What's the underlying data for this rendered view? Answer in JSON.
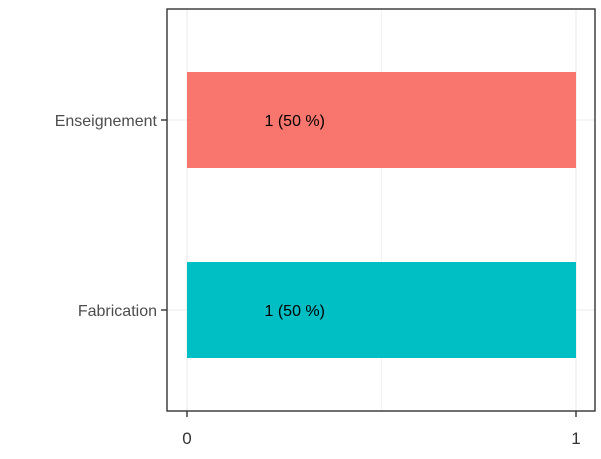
{
  "chart_data": {
    "type": "bar",
    "orientation": "horizontal",
    "categories": [
      "Enseignement",
      "Fabrication"
    ],
    "values": [
      1,
      1
    ],
    "data_labels": [
      "1 (50 %)",
      "1 (50 %)"
    ],
    "colors": [
      "#F8766D",
      "#00BFC4"
    ],
    "title": "",
    "xlabel": "",
    "ylabel": "",
    "xlim": [
      0,
      1
    ],
    "x_ticks": [
      0,
      1
    ],
    "x_tick_labels": [
      "0",
      "1"
    ],
    "grid": true,
    "legend": "none"
  }
}
